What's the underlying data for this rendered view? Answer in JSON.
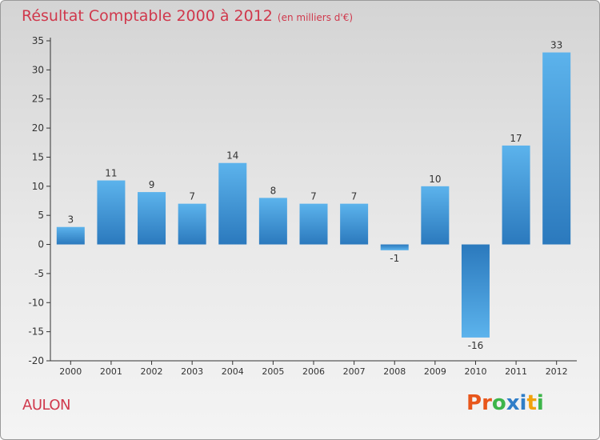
{
  "chart_data": {
    "type": "bar",
    "title": "Résultat Comptable 2000 à 2012",
    "subtitle": "(en milliers d'€)",
    "xlabel": "",
    "ylabel": "",
    "categories": [
      "2000",
      "2001",
      "2002",
      "2003",
      "2004",
      "2005",
      "2006",
      "2007",
      "2008",
      "2009",
      "2010",
      "2011",
      "2012"
    ],
    "values": [
      3,
      11,
      9,
      7,
      14,
      8,
      7,
      7,
      -1,
      10,
      -16,
      17,
      33
    ],
    "ylim": [
      -20,
      35
    ],
    "yticks": [
      35,
      30,
      25,
      20,
      15,
      10,
      5,
      0,
      -5,
      -10,
      -15,
      -20
    ],
    "grid": false,
    "bar_color": "#3a8fd4"
  },
  "commune": "AULON",
  "brand": {
    "letters": [
      "P",
      "r",
      "o",
      "x",
      "i",
      "t",
      "i"
    ],
    "colors": [
      "#e8561b",
      "#e8561b",
      "#3db54a",
      "#2f7ec8",
      "#2f7ec8",
      "#f2a20c",
      "#3db54a"
    ]
  }
}
